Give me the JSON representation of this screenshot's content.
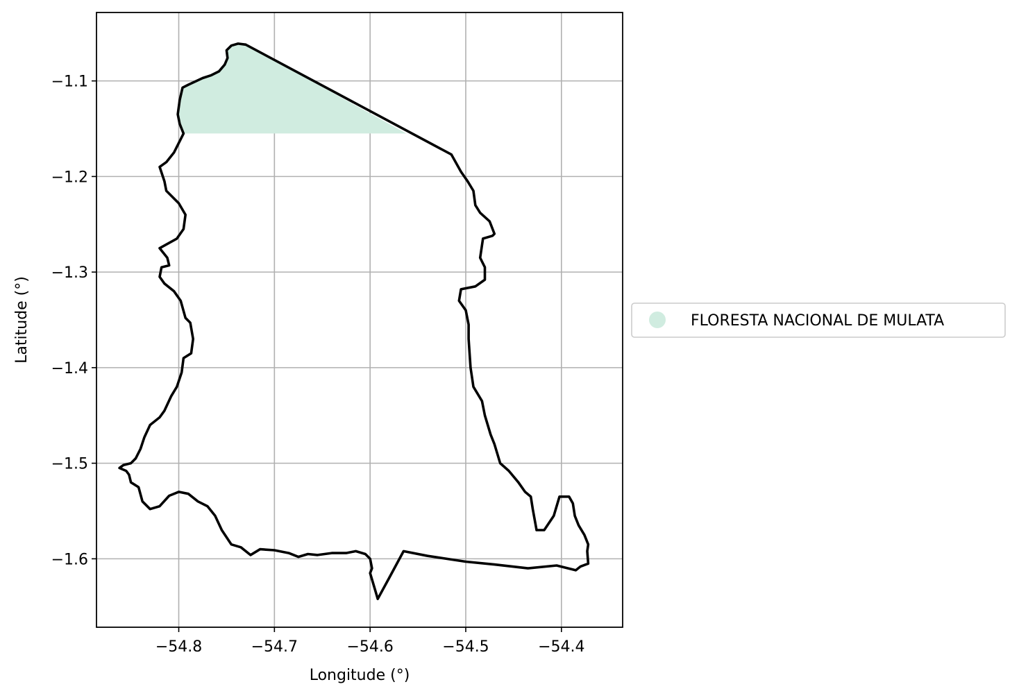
{
  "chart_data": {
    "type": "map",
    "xlabel": "Longitude (°)",
    "ylabel": "Latitude (°)",
    "xlim": [
      -54.886,
      -54.336
    ],
    "ylim": [
      -1.6716,
      -1.0284
    ],
    "grid": true,
    "x_ticks": [
      {
        "value": -54.8,
        "label": "−54.8"
      },
      {
        "value": -54.7,
        "label": "−54.7"
      },
      {
        "value": -54.6,
        "label": "−54.6"
      },
      {
        "value": -54.5,
        "label": "−54.5"
      },
      {
        "value": -54.4,
        "label": "−54.4"
      }
    ],
    "y_ticks": [
      {
        "value": -1.1,
        "label": "−1.1"
      },
      {
        "value": -1.2,
        "label": "−1.2"
      },
      {
        "value": -1.3,
        "label": "−1.3"
      },
      {
        "value": -1.4,
        "label": "−1.4"
      },
      {
        "value": -1.5,
        "label": "−1.5"
      },
      {
        "value": -1.6,
        "label": "−1.6"
      }
    ],
    "legend": {
      "placement": "center-right-outside",
      "entries": [
        {
          "label": "FLORESTA NACIONAL DE MULATA",
          "color": "#d0ece0"
        }
      ]
    },
    "boundary_color": "#000000",
    "fill_color": "#d0ece0",
    "filled_region": [
      [
        -54.795,
        -1.155
      ],
      [
        -54.799,
        -1.145
      ],
      [
        -54.801,
        -1.135
      ],
      [
        -54.799,
        -1.12
      ],
      [
        -54.796,
        -1.107
      ],
      [
        -54.79,
        -1.104
      ],
      [
        -54.775,
        -1.097
      ],
      [
        -54.766,
        -1.094
      ],
      [
        -54.758,
        -1.09
      ],
      [
        -54.752,
        -1.083
      ],
      [
        -54.749,
        -1.076
      ],
      [
        -54.75,
        -1.068
      ],
      [
        -54.745,
        -1.063
      ],
      [
        -54.738,
        -1.061
      ],
      [
        -54.73,
        -1.062
      ],
      [
        -54.562,
        -1.155
      ]
    ],
    "boundary": [
      [
        -54.73,
        -1.062
      ],
      [
        -54.515,
        -1.177
      ],
      [
        -54.51,
        -1.186
      ],
      [
        -54.505,
        -1.195
      ],
      [
        -54.498,
        -1.205
      ],
      [
        -54.492,
        -1.215
      ],
      [
        -54.49,
        -1.23
      ],
      [
        -54.485,
        -1.238
      ],
      [
        -54.475,
        -1.247
      ],
      [
        -54.47,
        -1.26
      ],
      [
        -54.472,
        -1.262
      ],
      [
        -54.482,
        -1.265
      ],
      [
        -54.485,
        -1.285
      ],
      [
        -54.48,
        -1.295
      ],
      [
        -54.48,
        -1.308
      ],
      [
        -54.49,
        -1.315
      ],
      [
        -54.505,
        -1.318
      ],
      [
        -54.507,
        -1.33
      ],
      [
        -54.5,
        -1.34
      ],
      [
        -54.497,
        -1.355
      ],
      [
        -54.497,
        -1.37
      ],
      [
        -54.496,
        -1.385
      ],
      [
        -54.495,
        -1.4
      ],
      [
        -54.492,
        -1.42
      ],
      [
        -54.483,
        -1.435
      ],
      [
        -54.48,
        -1.45
      ],
      [
        -54.474,
        -1.47
      ],
      [
        -54.47,
        -1.48
      ],
      [
        -54.464,
        -1.5
      ],
      [
        -54.455,
        -1.508
      ],
      [
        -54.445,
        -1.52
      ],
      [
        -54.438,
        -1.53
      ],
      [
        -54.432,
        -1.535
      ],
      [
        -54.43,
        -1.548
      ],
      [
        -54.426,
        -1.57
      ],
      [
        -54.418,
        -1.57
      ],
      [
        -54.408,
        -1.555
      ],
      [
        -54.402,
        -1.535
      ],
      [
        -54.392,
        -1.535
      ],
      [
        -54.388,
        -1.542
      ],
      [
        -54.386,
        -1.555
      ],
      [
        -54.382,
        -1.565
      ],
      [
        -54.376,
        -1.575
      ],
      [
        -54.372,
        -1.585
      ],
      [
        -54.373,
        -1.592
      ],
      [
        -54.372,
        -1.605
      ],
      [
        -54.38,
        -1.608
      ],
      [
        -54.385,
        -1.612
      ],
      [
        -54.405,
        -1.607
      ],
      [
        -54.435,
        -1.61
      ],
      [
        -54.47,
        -1.606
      ],
      [
        -54.5,
        -1.603
      ],
      [
        -54.54,
        -1.597
      ],
      [
        -54.565,
        -1.592
      ],
      [
        -54.58,
        -1.62
      ],
      [
        -54.592,
        -1.642
      ],
      [
        -54.594,
        -1.635
      ],
      [
        -54.597,
        -1.625
      ],
      [
        -54.6,
        -1.615
      ],
      [
        -54.598,
        -1.61
      ],
      [
        -54.6,
        -1.6
      ],
      [
        -54.605,
        -1.595
      ],
      [
        -54.615,
        -1.592
      ],
      [
        -54.625,
        -1.594
      ],
      [
        -54.64,
        -1.594
      ],
      [
        -54.655,
        -1.596
      ],
      [
        -54.665,
        -1.595
      ],
      [
        -54.675,
        -1.598
      ],
      [
        -54.685,
        -1.594
      ],
      [
        -54.7,
        -1.591
      ],
      [
        -54.715,
        -1.59
      ],
      [
        -54.725,
        -1.596
      ],
      [
        -54.735,
        -1.588
      ],
      [
        -54.745,
        -1.585
      ],
      [
        -54.755,
        -1.57
      ],
      [
        -54.762,
        -1.555
      ],
      [
        -54.77,
        -1.545
      ],
      [
        -54.78,
        -1.54
      ],
      [
        -54.79,
        -1.532
      ],
      [
        -54.8,
        -1.53
      ],
      [
        -54.81,
        -1.534
      ],
      [
        -54.82,
        -1.545
      ],
      [
        -54.83,
        -1.548
      ],
      [
        -54.838,
        -1.54
      ],
      [
        -54.842,
        -1.525
      ],
      [
        -54.85,
        -1.52
      ],
      [
        -54.852,
        -1.512
      ],
      [
        -54.855,
        -1.508
      ],
      [
        -54.862,
        -1.505
      ],
      [
        -54.858,
        -1.502
      ],
      [
        -54.85,
        -1.5
      ],
      [
        -54.845,
        -1.495
      ],
      [
        -54.84,
        -1.485
      ],
      [
        -54.836,
        -1.473
      ],
      [
        -54.83,
        -1.46
      ],
      [
        -54.82,
        -1.452
      ],
      [
        -54.815,
        -1.445
      ],
      [
        -54.808,
        -1.43
      ],
      [
        -54.802,
        -1.42
      ],
      [
        -54.797,
        -1.405
      ],
      [
        -54.795,
        -1.39
      ],
      [
        -54.787,
        -1.385
      ],
      [
        -54.785,
        -1.37
      ],
      [
        -54.788,
        -1.353
      ],
      [
        -54.793,
        -1.348
      ],
      [
        -54.798,
        -1.33
      ],
      [
        -54.805,
        -1.32
      ],
      [
        -54.815,
        -1.312
      ],
      [
        -54.82,
        -1.305
      ],
      [
        -54.818,
        -1.295
      ],
      [
        -54.81,
        -1.293
      ],
      [
        -54.812,
        -1.285
      ],
      [
        -54.82,
        -1.275
      ],
      [
        -54.802,
        -1.265
      ],
      [
        -54.795,
        -1.255
      ],
      [
        -54.793,
        -1.24
      ],
      [
        -54.8,
        -1.228
      ],
      [
        -54.813,
        -1.215
      ],
      [
        -54.815,
        -1.205
      ],
      [
        -54.82,
        -1.19
      ],
      [
        -54.813,
        -1.185
      ],
      [
        -54.805,
        -1.175
      ],
      [
        -54.8,
        -1.165
      ],
      [
        -54.795,
        -1.155
      ],
      [
        -54.799,
        -1.145
      ],
      [
        -54.801,
        -1.135
      ],
      [
        -54.799,
        -1.12
      ],
      [
        -54.796,
        -1.107
      ],
      [
        -54.79,
        -1.104
      ],
      [
        -54.775,
        -1.097
      ],
      [
        -54.766,
        -1.094
      ],
      [
        -54.758,
        -1.09
      ],
      [
        -54.752,
        -1.083
      ],
      [
        -54.749,
        -1.076
      ],
      [
        -54.75,
        -1.068
      ],
      [
        -54.745,
        -1.063
      ],
      [
        -54.738,
        -1.061
      ],
      [
        -54.73,
        -1.062
      ]
    ]
  }
}
